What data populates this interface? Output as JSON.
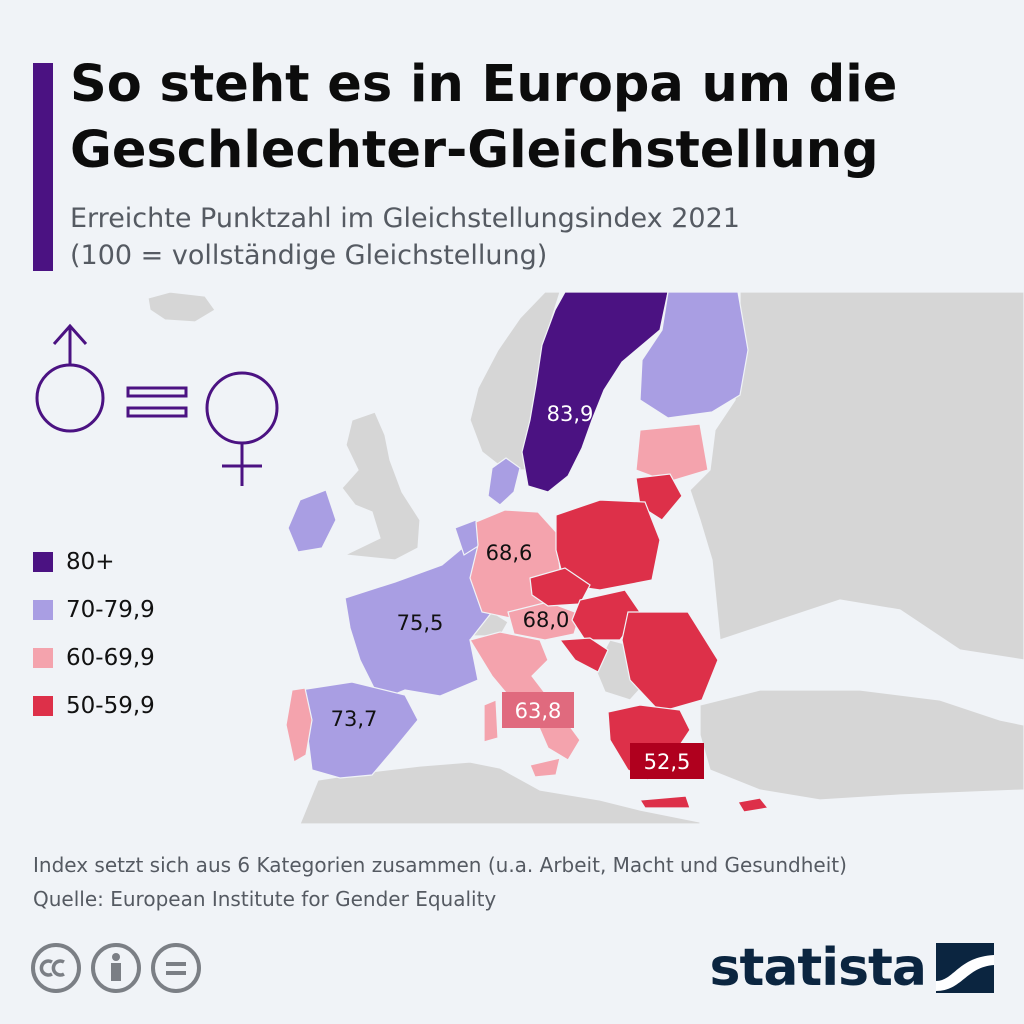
{
  "header": {
    "title_line1": "So steht es in Europa um die",
    "title_line2": "Geschlechter-Gleichstellung",
    "subtitle_line1": "Erreichte Punktzahl im Gleichstellungsindex 2021",
    "subtitle_line2": "(100 = vollständige Gleichstellung)"
  },
  "colors": {
    "accent": "#4b1282",
    "band_80": "#4b1282",
    "band_70": "#a99ee3",
    "band_60": "#f4a3ad",
    "band_50": "#dd3049",
    "non_member": "#d6d6d6",
    "sea": "#f0f3f7"
  },
  "legend": [
    {
      "label": "80+",
      "color": "#4b1282"
    },
    {
      "label": "70-79,9",
      "color": "#a99ee3"
    },
    {
      "label": "60-69,9",
      "color": "#f4a3ad"
    },
    {
      "label": "50-59,9",
      "color": "#dd3049"
    }
  ],
  "map_labels": {
    "sweden": "83,9",
    "germany": "68,6",
    "france": "75,5",
    "austria_region": "68,0",
    "spain": "73,7",
    "italy": "63,8",
    "greece": "52,5"
  },
  "map_data": {
    "values": [
      {
        "region": "Sweden",
        "value": 83.9,
        "band": "80+"
      },
      {
        "region": "France",
        "value": 75.5,
        "band": "70-79,9"
      },
      {
        "region": "Spain",
        "value": 73.7,
        "band": "70-79,9"
      },
      {
        "region": "Germany",
        "value": 68.6,
        "band": "60-69,9"
      },
      {
        "region": "Austria",
        "value": 68.0,
        "band": "60-69,9"
      },
      {
        "region": "Italy",
        "value": 63.8,
        "band": "60-69,9"
      },
      {
        "region": "Greece",
        "value": 52.5,
        "band": "50-59,9"
      }
    ]
  },
  "icon": {
    "name": "gender-equality-icon"
  },
  "footer": {
    "note_line1": "Index setzt sich aus 6 Kategorien zusammen (u.a. Arbeit, Macht und Gesundheit)",
    "note_line2": "Quelle: European Institute for Gender Equality",
    "brand": "statista",
    "license_icons": [
      "cc-icon",
      "attribution-icon",
      "no-derivatives-icon"
    ]
  }
}
